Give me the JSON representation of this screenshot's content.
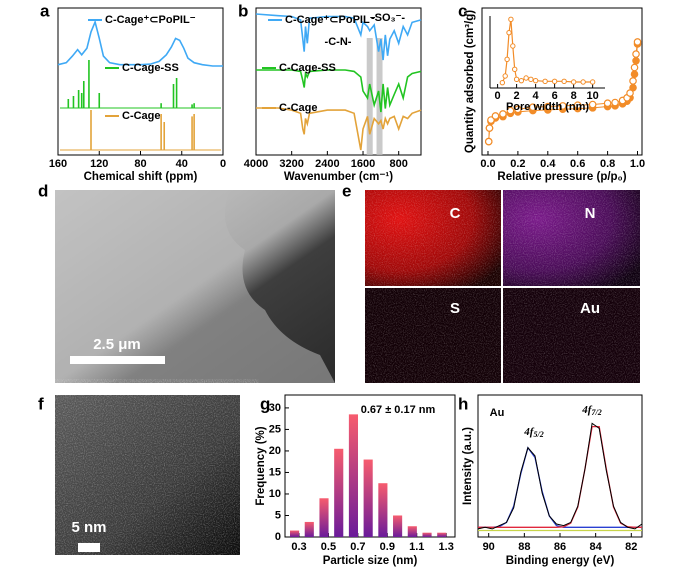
{
  "chart_data": [
    {
      "panel": "a",
      "type": "spectrum",
      "xlabel": "Chemical shift (ppm)",
      "xlim": [
        160,
        0
      ],
      "xticks": [
        160,
        120,
        80,
        40,
        0
      ],
      "series": [
        {
          "name": "C-Cage⁺⊂PoPIL⁻",
          "color": "#3fa9f5",
          "style": "line",
          "x": [
            160,
            152,
            146,
            141,
            137,
            132,
            128,
            124,
            120,
            116,
            110,
            100,
            90,
            80,
            70,
            62,
            55,
            50,
            46,
            42,
            38,
            34,
            28,
            20,
            10,
            0
          ],
          "values": [
            5,
            8,
            18,
            28,
            20,
            30,
            55,
            70,
            45,
            18,
            8,
            5,
            5,
            5,
            6,
            10,
            20,
            32,
            45,
            42,
            30,
            15,
            8,
            5,
            3,
            3
          ]
        },
        {
          "name": "C-Cage-SS",
          "color": "#22c422",
          "style": "stick",
          "x": [
            150,
            145,
            140,
            137,
            135,
            130,
            120,
            60,
            48,
            45,
            30,
            28
          ],
          "values": [
            15,
            20,
            30,
            25,
            45,
            80,
            25,
            8,
            40,
            50,
            6,
            8
          ]
        },
        {
          "name": "C-Cage",
          "color": "#e3a33a",
          "style": "stick",
          "x": [
            128,
            60,
            57,
            30,
            28
          ],
          "values": [
            50,
            45,
            35,
            42,
            45
          ]
        }
      ]
    },
    {
      "panel": "b",
      "type": "spectrum",
      "xlabel": "Wavenumber (cm⁻¹)",
      "xlim": [
        4000,
        300
      ],
      "xticks": [
        4000,
        3200,
        2400,
        1600,
        800
      ],
      "highlights": [
        1450,
        1230
      ],
      "annotations": [
        "-C-N-",
        "-SO₃⁻-"
      ],
      "series": [
        {
          "name": "C-Cage⁺⊂PoPIL⁻",
          "color": "#3fa9f5",
          "style": "line",
          "x": [
            4000,
            3500,
            3200,
            3000,
            2950,
            2920,
            2890,
            2850,
            2800,
            2400,
            2000,
            1800,
            1650,
            1600,
            1500,
            1450,
            1350,
            1250,
            1200,
            1150,
            1100,
            1050,
            1000,
            900,
            800,
            700,
            600,
            500,
            300
          ],
          "values": [
            85,
            83,
            82,
            78,
            55,
            40,
            70,
            50,
            80,
            82,
            82,
            80,
            60,
            75,
            70,
            65,
            72,
            40,
            55,
            30,
            60,
            35,
            55,
            65,
            50,
            70,
            60,
            75,
            78
          ]
        },
        {
          "name": "C-Cage-SS",
          "color": "#22c422",
          "style": "line",
          "x": [
            4000,
            3500,
            3200,
            3000,
            2950,
            2920,
            2890,
            2850,
            2800,
            2400,
            2000,
            1800,
            1650,
            1600,
            1500,
            1450,
            1350,
            1250,
            1200,
            1150,
            1100,
            1050,
            1000,
            900,
            800,
            700,
            600,
            500,
            300
          ],
          "values": [
            80,
            80,
            80,
            78,
            65,
            55,
            75,
            70,
            78,
            80,
            80,
            78,
            70,
            50,
            40,
            60,
            30,
            50,
            20,
            60,
            25,
            55,
            30,
            45,
            60,
            40,
            70,
            75,
            78
          ]
        },
        {
          "name": "C-Cage",
          "color": "#e3a33a",
          "style": "line",
          "x": [
            4000,
            3500,
            3200,
            3000,
            2950,
            2920,
            2890,
            2850,
            2800,
            2400,
            2000,
            1800,
            1650,
            1600,
            1500,
            1450,
            1350,
            1250,
            1200,
            1150,
            1100,
            1050,
            1000,
            900,
            800,
            700,
            600,
            500,
            300
          ],
          "values": [
            80,
            80,
            78,
            75,
            60,
            55,
            70,
            65,
            75,
            78,
            78,
            75,
            40,
            60,
            72,
            55,
            70,
            65,
            68,
            60,
            70,
            65,
            70,
            72,
            60,
            72,
            70,
            75,
            78
          ]
        }
      ]
    },
    {
      "panel": "c",
      "type": "isotherm",
      "xlabel": "Relative pressure (p/p₀)",
      "ylabel": "Quantity adsorbed (cm³/g)",
      "xlim": [
        -0.04,
        1.03
      ],
      "xticks": [
        {
          "value": 0,
          "label": "0.0"
        },
        0.2,
        0.4,
        0.6,
        0.8,
        {
          "value": 1,
          "label": "1.0"
        }
      ],
      "series": [
        {
          "color": "#f28c28",
          "marker": "filled",
          "x": [
            0.005,
            0.01,
            0.02,
            0.05,
            0.1,
            0.15,
            0.2,
            0.3,
            0.4,
            0.5,
            0.6,
            0.7,
            0.8,
            0.85,
            0.9,
            0.93,
            0.95,
            0.97,
            0.98,
            0.99,
            1.0
          ],
          "values": [
            20,
            40,
            50,
            55,
            57,
            62,
            64,
            66,
            67,
            68,
            69,
            70,
            72,
            73,
            76,
            80,
            85,
            100,
            120,
            140,
            165
          ]
        },
        {
          "color": "#f28c28",
          "marker": "open",
          "x": [
            0.005,
            0.01,
            0.02,
            0.05,
            0.1,
            0.15,
            0.2,
            0.3,
            0.4,
            0.5,
            0.6,
            0.7,
            0.8,
            0.85,
            0.9,
            0.93,
            0.95,
            0.97,
            0.98,
            0.99,
            1.0
          ],
          "values": [
            20,
            40,
            52,
            58,
            61,
            66,
            68,
            71,
            72,
            73,
            74,
            75,
            77,
            78,
            81,
            85,
            92,
            110,
            130,
            150,
            168
          ]
        }
      ],
      "inset": {
        "xlabel": "Pore width (nm)",
        "xlim": [
          -0.8,
          11.3
        ],
        "xticks": [
          0,
          2,
          4,
          6,
          8,
          10
        ],
        "color": "#f28c28",
        "x": [
          0.5,
          0.8,
          1.0,
          1.2,
          1.4,
          1.6,
          1.8,
          2.0,
          2.5,
          3,
          3.5,
          4,
          5,
          6,
          7,
          8,
          9,
          10
        ],
        "values": [
          5,
          15,
          40,
          80,
          100,
          60,
          25,
          10,
          8,
          12,
          10,
          8,
          7,
          7,
          7,
          6,
          6,
          6
        ]
      }
    },
    {
      "panel": "d",
      "type": "image",
      "scale_bar": "2.5 μm"
    },
    {
      "panel": "e",
      "type": "image",
      "labels": [
        "C",
        "N",
        "S",
        "Au"
      ]
    },
    {
      "panel": "f",
      "type": "image",
      "scale_bar": "5 nm"
    },
    {
      "panel": "g",
      "type": "histogram",
      "xlabel": "Particle size (nm)",
      "ylabel": "Frequency (%)",
      "annotation": "0.67 ± 0.17 nm",
      "colors": [
        "#f75c6e",
        "#6a1b9a"
      ],
      "bins": [
        0.22,
        0.32,
        0.42,
        0.52,
        0.62,
        0.72,
        0.82,
        0.92,
        1.02,
        1.12,
        1.22,
        1.32
      ],
      "values": [
        1.5,
        3.5,
        9,
        20.5,
        28.5,
        18,
        12.5,
        5,
        2.5,
        1,
        1
      ],
      "xlim": [
        0.205,
        1.36
      ],
      "xticks": [
        0.3,
        0.5,
        0.7,
        0.9,
        1.1,
        1.3
      ],
      "ylim": [
        0,
        33
      ],
      "yticks": [
        0,
        5,
        10,
        15,
        20,
        25,
        30
      ]
    },
    {
      "panel": "h",
      "type": "xps",
      "label": "Au",
      "xlabel": "Binding energy (eV)",
      "ylabel": "Intensity (a.u.)",
      "xlim": [
        90.6,
        81.4
      ],
      "xticks": [
        90,
        88,
        86,
        84,
        82
      ],
      "annotations": [
        {
          "text": "4f",
          "sub": "5/2"
        },
        {
          "text": "4f",
          "sub": "7/2"
        }
      ],
      "x": [
        90.6,
        90.2,
        89.8,
        89.4,
        89.0,
        88.6,
        88.2,
        87.8,
        87.4,
        87.0,
        86.6,
        86.2,
        85.8,
        85.4,
        85.0,
        84.6,
        84.2,
        83.8,
        83.4,
        83.0,
        82.6,
        82.2,
        81.8,
        81.4
      ],
      "series": [
        {
          "color": "#000000",
          "values": [
            5,
            6,
            5,
            7,
            9,
            18,
            40,
            55,
            50,
            27,
            13,
            8,
            7,
            9,
            19,
            42,
            70,
            67,
            41,
            19,
            9,
            6,
            5,
            8
          ]
        },
        {
          "color": "#2a3fd1",
          "values": [
            6,
            6,
            6,
            6.4,
            9,
            19,
            39,
            55,
            49,
            28,
            13,
            7,
            6,
            6,
            6,
            6,
            6,
            6,
            6,
            6,
            6,
            6,
            6,
            6
          ]
        },
        {
          "color": "#e0283c",
          "values": [
            6,
            6,
            6,
            6,
            6,
            6,
            6,
            6,
            6,
            6,
            6,
            6,
            6.3,
            8.5,
            18.5,
            42,
            68,
            68,
            42,
            18.5,
            8.5,
            6.3,
            6,
            6
          ]
        },
        {
          "color": "#c8d44a",
          "values": [
            4,
            4,
            4,
            4,
            4,
            4,
            4,
            4,
            4,
            4,
            4,
            4,
            4,
            4,
            4,
            4,
            4,
            4,
            4,
            4,
            4,
            4,
            4,
            4
          ]
        }
      ]
    }
  ]
}
